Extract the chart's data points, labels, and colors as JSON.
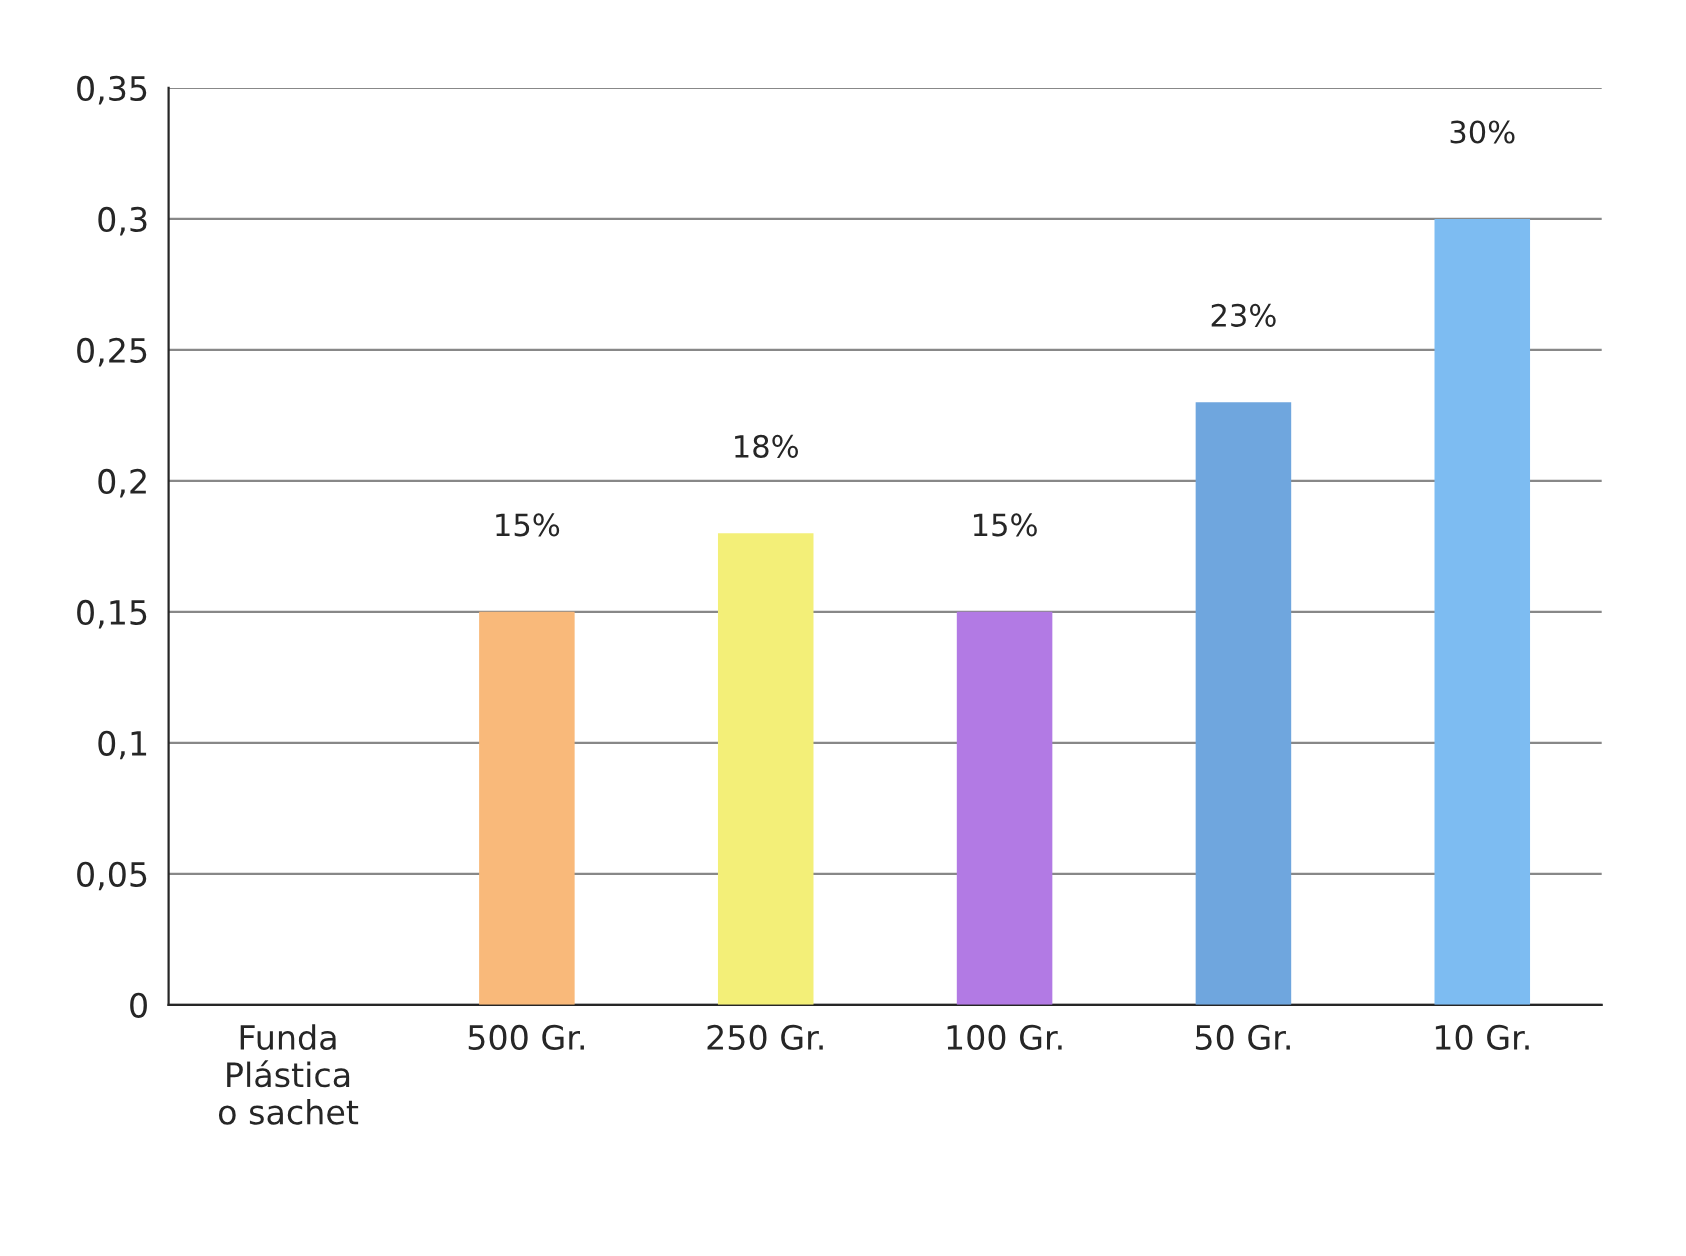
{
  "chart_data": {
    "type": "bar",
    "categories": [
      "Funda\nPlástica\no sachet",
      "500 Gr.",
      "250 Gr.",
      "100 Gr.",
      "50 Gr.",
      "10 Gr."
    ],
    "values": [
      null,
      0.15,
      0.18,
      0.15,
      0.23,
      0.3
    ],
    "value_labels": [
      null,
      "15%",
      "18%",
      "15%",
      "23%",
      "30%"
    ],
    "colors": [
      "#f9b97a",
      "#f9b97a",
      "#f3ef78",
      "#b27ae4",
      "#6fa6de",
      "#7dbcf2"
    ],
    "ylim": [
      0,
      0.35
    ],
    "yticks": [
      0,
      {
        "value": 0.05,
        "label": "0,05"
      },
      {
        "value": 0.1,
        "label": "0,1"
      },
      {
        "value": 0.15,
        "label": "0,15"
      },
      {
        "value": 0.2,
        "label": "0,2"
      },
      {
        "value": 0.25,
        "label": "0,25"
      },
      {
        "value": 0.3,
        "label": "0,3"
      },
      {
        "value": 0.35,
        "label": "0,35"
      }
    ],
    "grid": "y",
    "legend": false
  }
}
